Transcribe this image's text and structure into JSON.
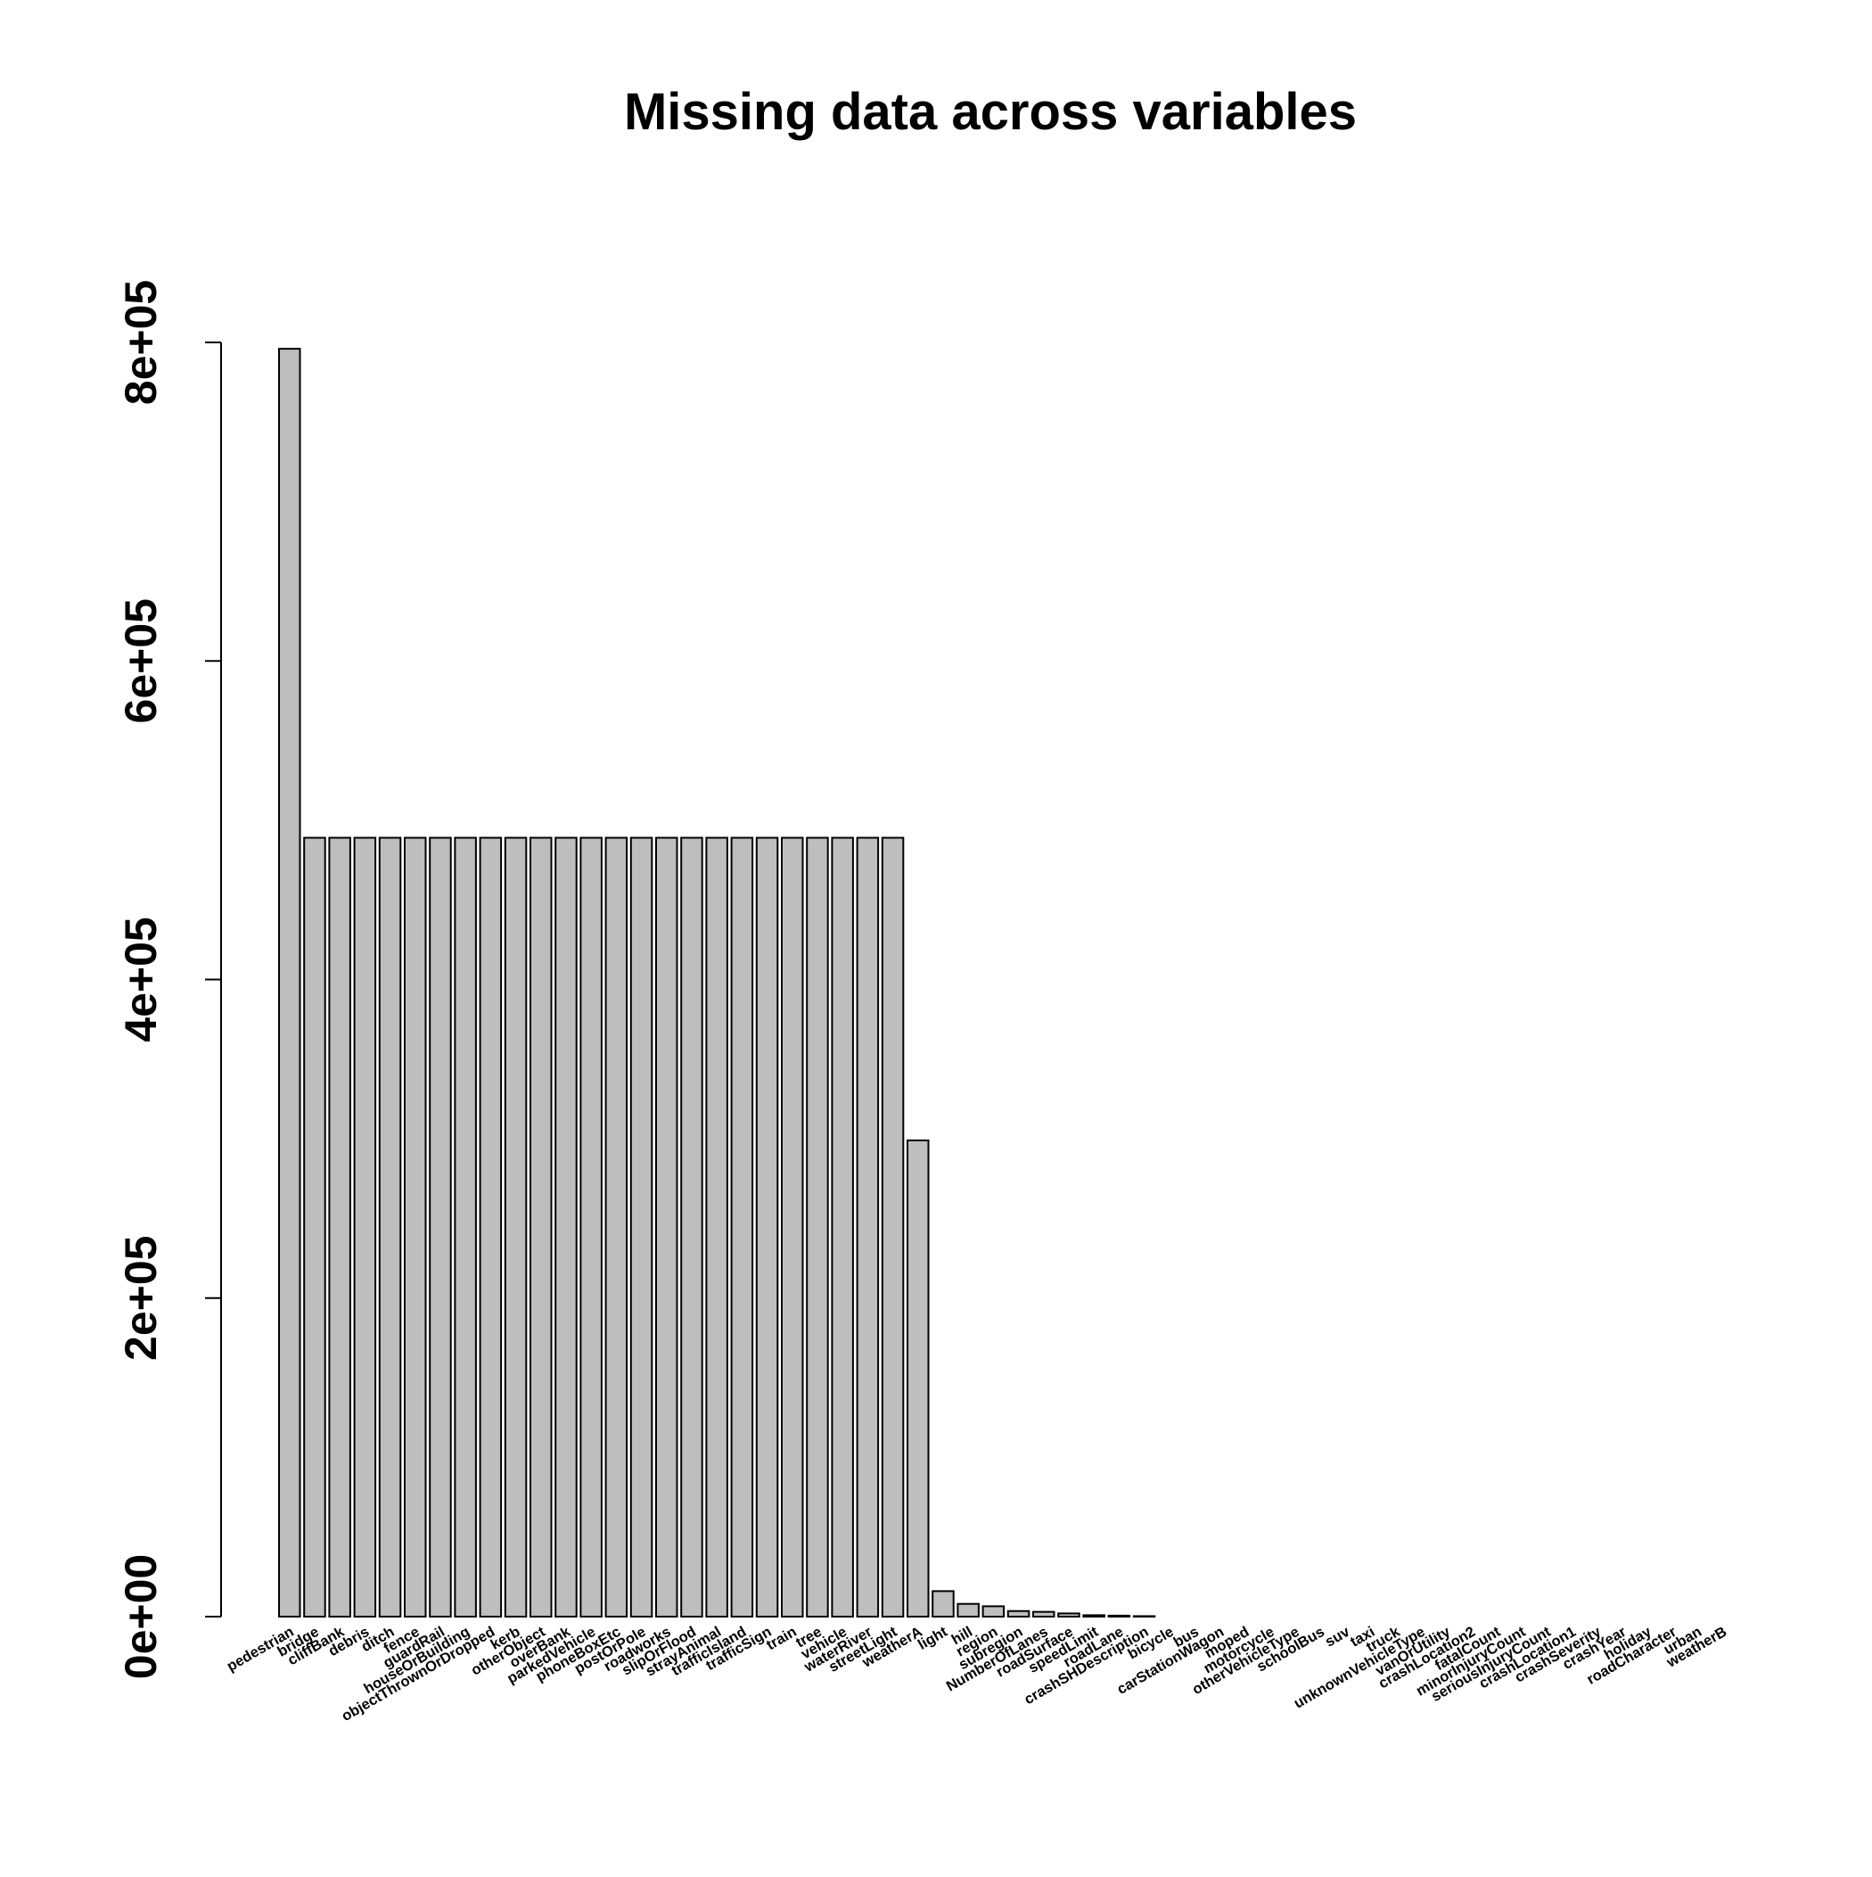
{
  "chart_data": {
    "type": "bar",
    "title": "Missing data across variables",
    "xlabel": "",
    "ylabel": "",
    "ylim": [
      0,
      800000
    ],
    "yticks": [
      0,
      200000,
      400000,
      600000,
      800000
    ],
    "ytick_labels": [
      "0e+00",
      "2e+05",
      "4e+05",
      "6e+05",
      "8e+05"
    ],
    "grid": false,
    "legend": "none",
    "bar_color": "#bebebe",
    "edge_color": "#000000",
    "categories": [
      "pedestrian",
      "bridge",
      "cliffBank",
      "debris",
      "ditch",
      "fence",
      "guardRail",
      "houseOrBuilding",
      "objectThrownOrDropped",
      "kerb",
      "otherObject",
      "overBank",
      "parkedVehicle",
      "phoneBoxEtc",
      "postOrPole",
      "roadworks",
      "slipOrFlood",
      "strayAnimal",
      "trafficIsland",
      "trafficSign",
      "train",
      "tree",
      "vehicle",
      "waterRiver",
      "streetLight",
      "weatherA",
      "light",
      "hill",
      "region",
      "subregion",
      "NumberOfLanes",
      "roadSurface",
      "speedLimit",
      "roadLane",
      "crashSHDescription",
      "bicycle",
      "bus",
      "carStationWagon",
      "moped",
      "motorcycle",
      "otherVehicleType",
      "schoolBus",
      "suv",
      "taxi",
      "truck",
      "unknownVehicleType",
      "vanOrUtility",
      "crashLocation2",
      "fatalCount",
      "minorInjuryCount",
      "seriousInjuryCount",
      "crashLocation1",
      "crashSeverity",
      "crashYear",
      "holiday",
      "roadCharacter",
      "urban",
      "weatherB"
    ],
    "values": [
      796000,
      489000,
      489000,
      489000,
      489000,
      489000,
      489000,
      489000,
      489000,
      489000,
      489000,
      489000,
      489000,
      489000,
      489000,
      489000,
      489000,
      489000,
      489000,
      489000,
      489000,
      489000,
      489000,
      489000,
      489000,
      299000,
      16000,
      8000,
      6500,
      3500,
      3000,
      2000,
      900,
      600,
      300,
      0,
      0,
      0,
      0,
      0,
      0,
      0,
      0,
      0,
      0,
      0,
      0,
      0,
      0,
      0,
      0,
      0,
      0,
      0,
      0,
      0,
      0,
      0
    ]
  }
}
